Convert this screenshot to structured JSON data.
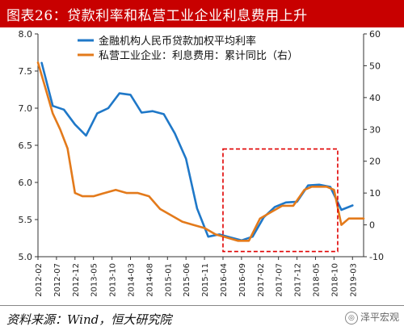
{
  "title": "图表26：贷款利率和私营工业企业利息费用上升",
  "source": "资料来源：Wind，恒大研究院",
  "watermark": "泽平宏观",
  "colors": {
    "title_bg": "#c80000",
    "series_blue": "#1f78c8",
    "series_orange": "#e37a1b",
    "highlight_box": "#e00000"
  },
  "chart_data": {
    "type": "line",
    "x_tick_labels": [
      "2012-02",
      "2012-07",
      "2012-12",
      "2013-05",
      "2013-10",
      "2014-03",
      "2014-08",
      "2015-01",
      "2015-06",
      "2015-11",
      "2016-04",
      "2016-09",
      "2017-02",
      "2017-07",
      "2017-12",
      "2018-05",
      "2018-10",
      "2019-03"
    ],
    "x_range": [
      "2012-02",
      "2019-06"
    ],
    "y_left": {
      "range": [
        5.0,
        8.0
      ],
      "ticks": [
        "5.0",
        "5.5",
        "6.0",
        "6.5",
        "7.0",
        "7.5",
        "8.0"
      ]
    },
    "y_right": {
      "range": [
        -10,
        60
      ],
      "ticks": [
        "-10",
        "0",
        "10",
        "20",
        "30",
        "40",
        "50",
        "60"
      ]
    },
    "grid": false,
    "legend_position": "top",
    "series": [
      {
        "name": "金融机构人民币贷款加权平均利率",
        "axis": "left",
        "color": "#1f78c8",
        "x": [
          "2012-03",
          "2012-06",
          "2012-09",
          "2012-12",
          "2013-03",
          "2013-06",
          "2013-09",
          "2013-12",
          "2014-03",
          "2014-06",
          "2014-09",
          "2014-12",
          "2015-03",
          "2015-06",
          "2015-09",
          "2015-12",
          "2016-03",
          "2016-06",
          "2016-09",
          "2016-12",
          "2017-03",
          "2017-06",
          "2017-09",
          "2017-12",
          "2018-03",
          "2018-06",
          "2018-09",
          "2018-12",
          "2019-03"
        ],
        "y": [
          7.61,
          7.03,
          6.98,
          6.78,
          6.63,
          6.93,
          7.0,
          7.2,
          7.18,
          6.94,
          6.96,
          6.92,
          6.66,
          6.32,
          5.65,
          5.27,
          5.3,
          5.26,
          5.22,
          5.27,
          5.53,
          5.67,
          5.73,
          5.74,
          5.96,
          5.97,
          5.94,
          5.63,
          5.69
        ]
      },
      {
        "name": "私营工业企业：利息费用：累计同比（右）",
        "axis": "right",
        "color": "#e37a1b",
        "x": [
          "2012-02",
          "2012-04",
          "2012-06",
          "2012-08",
          "2012-10",
          "2012-12",
          "2013-02",
          "2013-05",
          "2013-08",
          "2013-11",
          "2014-02",
          "2014-05",
          "2014-08",
          "2014-11",
          "2015-02",
          "2015-05",
          "2015-08",
          "2015-11",
          "2016-02",
          "2016-05",
          "2016-08",
          "2016-11",
          "2017-02",
          "2017-05",
          "2017-08",
          "2017-11",
          "2018-02",
          "2018-04",
          "2018-06",
          "2018-08",
          "2018-10",
          "2018-12",
          "2019-02",
          "2019-04",
          "2019-06"
        ],
        "y": [
          51,
          43,
          35,
          30,
          24,
          10,
          9,
          9,
          10,
          11,
          10,
          10,
          9,
          5,
          3,
          1,
          0,
          -1,
          -3,
          -4,
          -5,
          -5,
          2,
          4,
          6,
          6,
          11,
          12,
          12,
          12,
          11,
          0,
          2,
          2,
          2
        ]
      }
    ],
    "highlight_box": {
      "x_start": "2016-04",
      "x_end": "2018-11",
      "y_left_start": 5.07,
      "y_left_end": 6.45
    }
  }
}
